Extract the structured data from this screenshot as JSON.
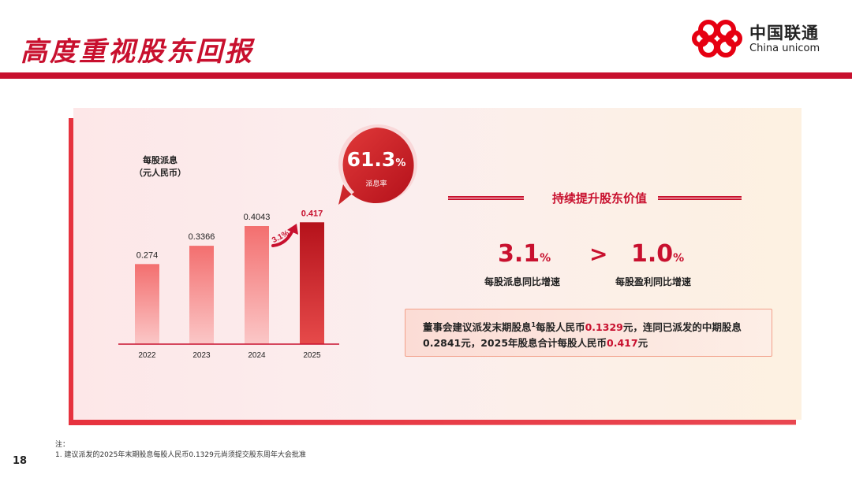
{
  "header": {
    "title": "高度重视股东回报",
    "logo_cn": "中国联通",
    "logo_en": "China unicom"
  },
  "chart_data": {
    "type": "bar",
    "ylabel_line1": "每股派息",
    "ylabel_line2": "（元人民币）",
    "categories": [
      "2022",
      "2023",
      "2024",
      "2025"
    ],
    "values": [
      0.274,
      0.3366,
      0.4043,
      0.417
    ],
    "value_labels": [
      "0.274",
      "0.3366",
      "0.4043",
      "0.417"
    ],
    "highlight_index": 3,
    "growth_annotation": "3.1%"
  },
  "payout": {
    "value": "61.3",
    "unit": "%",
    "label": "派息率"
  },
  "section": {
    "title": "持续提升股东价值",
    "left_value": "3.1",
    "left_unit": "%",
    "left_label": "每股派息同比增速",
    "comparator": ">",
    "right_value": "1.0",
    "right_unit": "%",
    "right_label": "每股盈利同比增速"
  },
  "note": {
    "part1": "董事会建议派发末期股息",
    "sup": "1",
    "part2": "每股人民币",
    "amount1": "0.1329",
    "part3": "元，连同已派发的中期股息0.2841元，2025年股息合计每股人民币",
    "amount2": "0.417",
    "part4": "元"
  },
  "footer": {
    "note_heading": "注：",
    "note_1": "1. 建议派发的2025年末期股息每股人民币0.1329元尚须提交股东周年大会批准",
    "page_number": "18"
  },
  "colors": {
    "brand_red": "#c8102e",
    "bar_light": "#f8a0a0",
    "bar_dark": "#b5121b"
  }
}
